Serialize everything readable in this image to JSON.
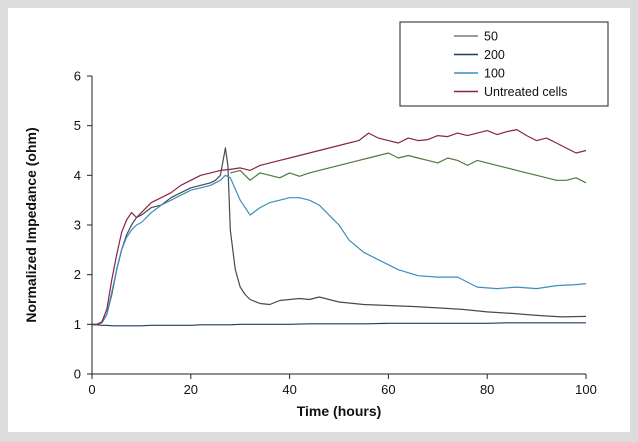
{
  "chart_data": {
    "type": "line",
    "title": "",
    "xlabel": "Time (hours)",
    "ylabel": "Normalized Impedance (ohm)",
    "xlim": [
      0,
      100
    ],
    "ylim": [
      0,
      6
    ],
    "xticks": [
      0,
      20,
      40,
      60,
      80,
      100
    ],
    "yticks": [
      0,
      1,
      2,
      3,
      4,
      5,
      6
    ],
    "grid": false,
    "legend_position": "top-right",
    "legend": [
      {
        "label": "50",
        "color": "#7a7a7a"
      },
      {
        "label": "200",
        "color": "#1f3a5f"
      },
      {
        "label": "100",
        "color": "#3a8ec0"
      },
      {
        "label": "Untreated cells",
        "color": "#8b2346"
      }
    ],
    "series": [
      {
        "name": "50",
        "color": "#4a4a4a",
        "x": [
          0,
          1,
          2,
          3,
          4,
          5,
          6,
          7,
          8,
          9,
          10,
          12,
          14,
          16,
          18,
          20,
          22,
          24,
          25,
          26,
          27,
          27.5,
          28,
          29,
          30,
          31,
          32,
          34,
          36,
          38,
          40,
          42,
          44,
          46,
          48,
          50,
          55,
          60,
          65,
          70,
          75,
          80,
          85,
          90,
          95,
          100
        ],
        "y": [
          1.0,
          1.0,
          1.03,
          1.2,
          1.6,
          2.1,
          2.5,
          2.8,
          3.0,
          3.15,
          3.2,
          3.35,
          3.4,
          3.55,
          3.65,
          3.75,
          3.8,
          3.85,
          3.9,
          4.0,
          4.55,
          4.2,
          2.9,
          2.1,
          1.75,
          1.6,
          1.5,
          1.42,
          1.4,
          1.48,
          1.5,
          1.52,
          1.5,
          1.55,
          1.5,
          1.45,
          1.4,
          1.38,
          1.36,
          1.33,
          1.3,
          1.25,
          1.22,
          1.18,
          1.15,
          1.16
        ]
      },
      {
        "name": "200",
        "color": "#1f3a5f",
        "x": [
          0,
          1,
          2,
          3,
          4,
          5,
          6,
          7,
          8,
          9,
          10,
          12,
          14,
          16,
          18,
          20,
          22,
          24,
          26,
          27,
          28,
          30,
          32,
          34,
          36,
          38,
          40,
          44,
          48,
          52,
          56,
          60,
          64,
          68,
          72,
          76,
          80,
          84,
          88,
          92,
          96,
          100
        ],
        "y": [
          0.99,
          0.99,
          0.98,
          0.98,
          0.97,
          0.97,
          0.97,
          0.97,
          0.97,
          0.97,
          0.97,
          0.98,
          0.98,
          0.98,
          0.98,
          0.98,
          0.99,
          0.99,
          0.99,
          0.99,
          0.99,
          1.0,
          1.0,
          1.0,
          1.0,
          1.0,
          1.0,
          1.01,
          1.01,
          1.01,
          1.01,
          1.02,
          1.02,
          1.02,
          1.02,
          1.02,
          1.02,
          1.03,
          1.03,
          1.03,
          1.03,
          1.03
        ]
      },
      {
        "name": "100",
        "color": "#3a8ec0",
        "x": [
          0,
          1,
          2,
          3,
          4,
          5,
          6,
          7,
          8,
          9,
          10,
          12,
          14,
          16,
          18,
          20,
          22,
          24,
          26,
          27,
          28,
          30,
          32,
          34,
          36,
          38,
          40,
          42,
          44,
          46,
          48,
          50,
          52,
          55,
          58,
          62,
          66,
          70,
          74,
          78,
          82,
          86,
          90,
          94,
          98,
          100
        ],
        "y": [
          1.0,
          1.0,
          1.03,
          1.2,
          1.65,
          2.1,
          2.5,
          2.75,
          2.9,
          3.0,
          3.05,
          3.25,
          3.4,
          3.5,
          3.6,
          3.7,
          3.75,
          3.8,
          3.9,
          4.0,
          3.95,
          3.5,
          3.2,
          3.35,
          3.45,
          3.5,
          3.55,
          3.55,
          3.5,
          3.4,
          3.2,
          3.0,
          2.7,
          2.45,
          2.3,
          2.1,
          1.98,
          1.95,
          1.95,
          1.75,
          1.72,
          1.75,
          1.72,
          1.78,
          1.8,
          1.82
        ]
      },
      {
        "name": "Untreated cells",
        "color": "#8b2346",
        "x": [
          0,
          1,
          2,
          3,
          4,
          5,
          6,
          7,
          8,
          9,
          10,
          12,
          14,
          16,
          18,
          20,
          22,
          24,
          26,
          28,
          30,
          32,
          34,
          36,
          38,
          40,
          42,
          44,
          46,
          48,
          50,
          52,
          54,
          56,
          58,
          60,
          62,
          64,
          66,
          68,
          70,
          72,
          74,
          76,
          78,
          80,
          82,
          84,
          86,
          88,
          90,
          92,
          94,
          96,
          98,
          100
        ],
        "y": [
          1.0,
          1.0,
          1.05,
          1.3,
          1.9,
          2.4,
          2.85,
          3.1,
          3.25,
          3.15,
          3.25,
          3.45,
          3.55,
          3.65,
          3.8,
          3.9,
          4.0,
          4.05,
          4.1,
          4.12,
          4.15,
          4.1,
          4.2,
          4.25,
          4.3,
          4.35,
          4.4,
          4.45,
          4.5,
          4.55,
          4.6,
          4.65,
          4.7,
          4.85,
          4.75,
          4.7,
          4.65,
          4.75,
          4.7,
          4.72,
          4.8,
          4.78,
          4.85,
          4.8,
          4.85,
          4.9,
          4.82,
          4.88,
          4.92,
          4.8,
          4.7,
          4.75,
          4.65,
          4.55,
          4.45,
          4.5
        ]
      },
      {
        "name": "",
        "color": "#4f7a3e",
        "x": [
          28,
          30,
          32,
          34,
          36,
          38,
          40,
          42,
          44,
          46,
          48,
          50,
          52,
          54,
          56,
          58,
          60,
          62,
          64,
          66,
          68,
          70,
          72,
          74,
          76,
          78,
          80,
          82,
          84,
          86,
          88,
          90,
          92,
          94,
          96,
          98,
          100
        ],
        "y": [
          4.05,
          4.1,
          3.9,
          4.05,
          4.0,
          3.95,
          4.05,
          3.98,
          4.05,
          4.1,
          4.15,
          4.2,
          4.25,
          4.3,
          4.35,
          4.4,
          4.45,
          4.35,
          4.4,
          4.35,
          4.3,
          4.25,
          4.35,
          4.3,
          4.2,
          4.3,
          4.25,
          4.2,
          4.15,
          4.1,
          4.05,
          4.0,
          3.95,
          3.9,
          3.9,
          3.95,
          3.85
        ]
      }
    ]
  }
}
